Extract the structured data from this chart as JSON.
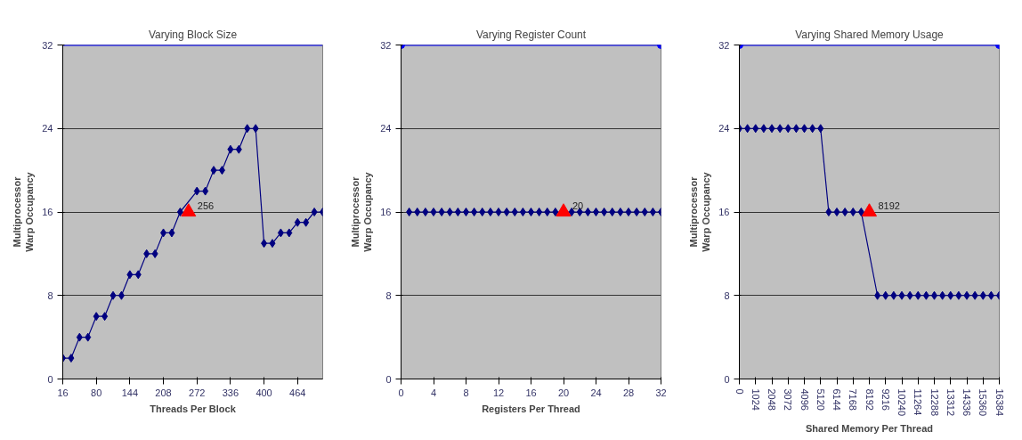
{
  "chart_data": [
    {
      "type": "line",
      "title": "Varying Block Size",
      "xlabel": "Threads Per Block",
      "ylabel": "Multiprocessor\nWarp Occupancy",
      "xlim": [
        16,
        512
      ],
      "xticks": [
        16,
        80,
        144,
        208,
        272,
        336,
        400,
        464
      ],
      "ylim": [
        0,
        32
      ],
      "yticks": [
        0,
        8,
        16,
        24,
        32
      ],
      "grid": "y",
      "annotations": [
        {
          "text": "256",
          "x": 256,
          "y": 16
        }
      ],
      "series": [
        {
          "type": "line",
          "color": "#0000ff",
          "x": [
            16,
            512
          ],
          "values": [
            32,
            32
          ],
          "marker": "none"
        },
        {
          "type": "line",
          "color": "#000080",
          "marker": "diamond",
          "x": [
            16,
            32,
            48,
            64,
            80,
            96,
            112,
            128,
            144,
            160,
            176,
            192,
            208,
            224,
            240,
            272,
            288,
            304,
            320,
            336,
            352,
            368,
            384,
            400,
            416,
            432,
            448,
            464,
            480,
            496,
            512
          ],
          "values": [
            2,
            2,
            4,
            4,
            6,
            6,
            8,
            8,
            10,
            10,
            12,
            12,
            14,
            14,
            16,
            18,
            18,
            20,
            20,
            22,
            22,
            24,
            24,
            13,
            13,
            14,
            14,
            15,
            15,
            16,
            16
          ]
        },
        {
          "type": "scatter",
          "color": "#ff0000",
          "marker": "triangle",
          "x": [
            256
          ],
          "values": [
            16
          ]
        }
      ]
    },
    {
      "type": "line",
      "title": "Varying Register Count",
      "xlabel": "Registers Per Thread",
      "ylabel": "Multiprocessor\nWarp Occupancy",
      "xlim": [
        0,
        32
      ],
      "xticks": [
        0,
        4,
        8,
        12,
        16,
        20,
        24,
        28,
        32
      ],
      "ylim": [
        0,
        32
      ],
      "yticks": [
        0,
        8,
        16,
        24,
        32
      ],
      "grid": "y",
      "annotations": [
        {
          "text": "20",
          "x": 20,
          "y": 16
        }
      ],
      "series": [
        {
          "type": "line",
          "color": "#0000ff",
          "x": [
            0,
            32
          ],
          "values": [
            32,
            32
          ],
          "marker": "circle"
        },
        {
          "type": "line",
          "color": "#000080",
          "marker": "diamond",
          "x": [
            1,
            2,
            3,
            4,
            5,
            6,
            7,
            8,
            9,
            10,
            11,
            12,
            13,
            14,
            15,
            16,
            17,
            18,
            19,
            21,
            22,
            23,
            24,
            25,
            26,
            27,
            28,
            29,
            30,
            31,
            32
          ],
          "values": [
            16,
            16,
            16,
            16,
            16,
            16,
            16,
            16,
            16,
            16,
            16,
            16,
            16,
            16,
            16,
            16,
            16,
            16,
            16,
            16,
            16,
            16,
            16,
            16,
            16,
            16,
            16,
            16,
            16,
            16,
            16
          ]
        },
        {
          "type": "scatter",
          "color": "#ff0000",
          "marker": "triangle",
          "x": [
            20
          ],
          "values": [
            16
          ]
        }
      ]
    },
    {
      "type": "line",
      "title": "Varying Shared Memory Usage",
      "xlabel": "Shared Memory Per Thread",
      "ylabel": "Multiprocessor\nWarp Occupancy",
      "xlim": [
        0,
        16384
      ],
      "xticks": [
        0,
        1024,
        2048,
        3072,
        4096,
        5120,
        6144,
        7168,
        8192,
        9216,
        10240,
        11264,
        12288,
        13312,
        14336,
        15360,
        16384
      ],
      "ylim": [
        0,
        32
      ],
      "yticks": [
        0,
        8,
        16,
        24,
        32
      ],
      "grid": "y",
      "annotations": [
        {
          "text": "8192",
          "x": 8192,
          "y": 16
        }
      ],
      "series": [
        {
          "type": "line",
          "color": "#0000ff",
          "x": [
            0,
            16384
          ],
          "values": [
            32,
            32
          ],
          "marker": "circle"
        },
        {
          "type": "line",
          "color": "#000080",
          "marker": "diamond",
          "x": [
            0,
            512,
            1024,
            1536,
            2048,
            2560,
            3072,
            3584,
            4096,
            4608,
            5120,
            5632,
            6144,
            6656,
            7168,
            7680,
            8704,
            9216,
            9728,
            10240,
            10752,
            11264,
            11776,
            12288,
            12800,
            13312,
            13824,
            14336,
            14848,
            15360,
            15872,
            16384
          ],
          "values": [
            24,
            24,
            24,
            24,
            24,
            24,
            24,
            24,
            24,
            24,
            24,
            16,
            16,
            16,
            16,
            16,
            8,
            8,
            8,
            8,
            8,
            8,
            8,
            8,
            8,
            8,
            8,
            8,
            8,
            8,
            8,
            8
          ]
        },
        {
          "type": "scatter",
          "color": "#ff0000",
          "marker": "triangle",
          "x": [
            8192
          ],
          "values": [
            16
          ]
        }
      ]
    }
  ]
}
